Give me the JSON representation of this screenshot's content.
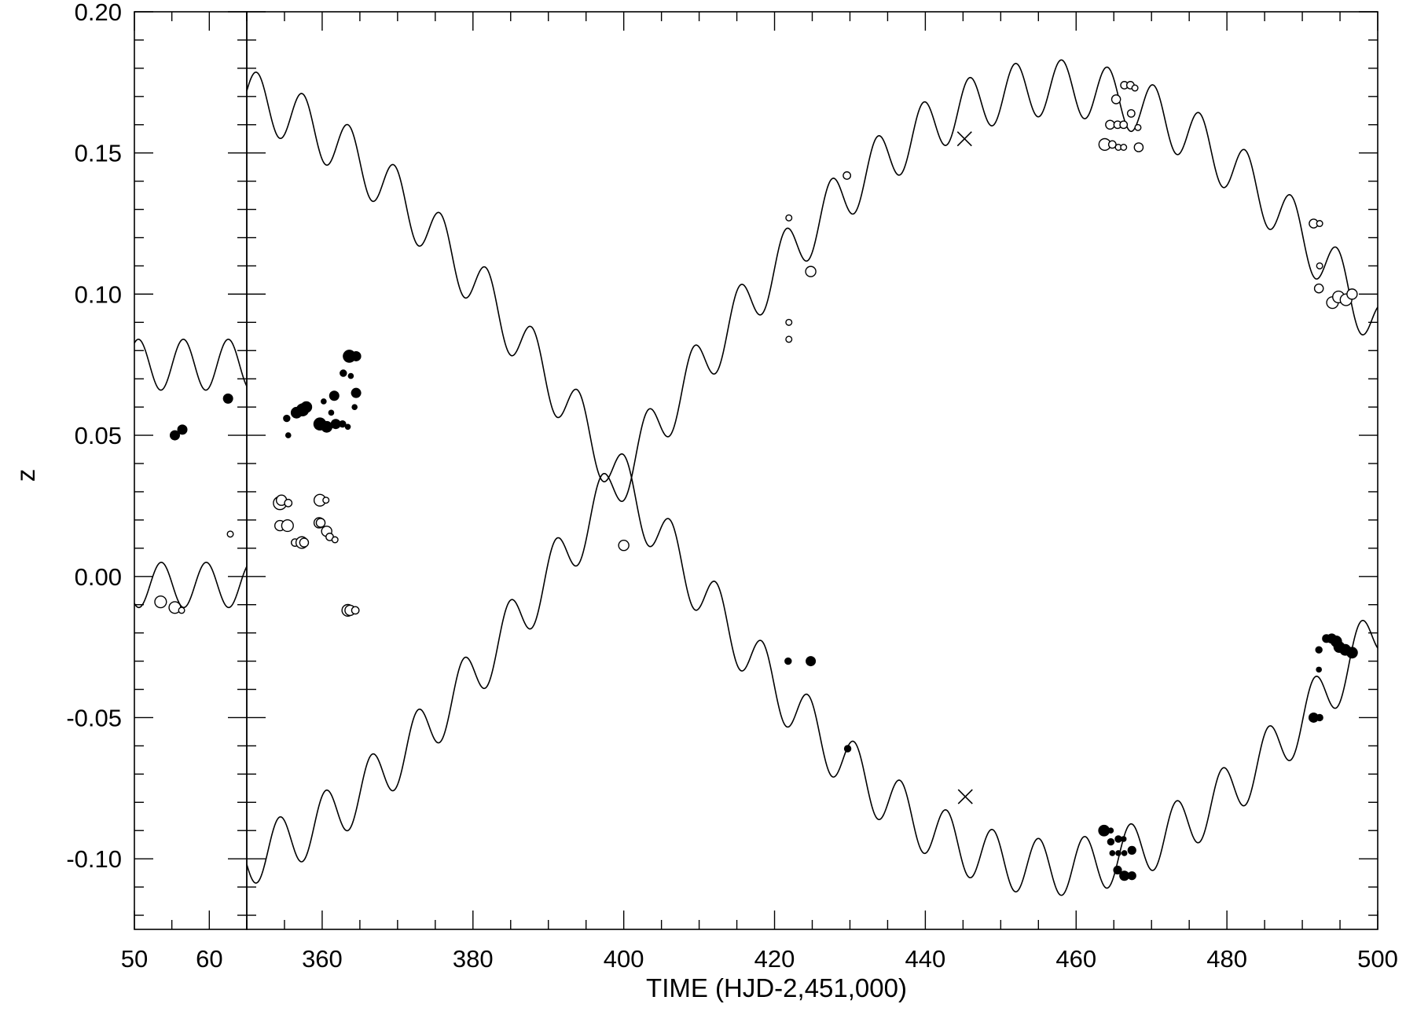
{
  "chart_data": {
    "type": "scatter",
    "xlabel": "TIME (HJD-2,451,000)",
    "ylabel": "z",
    "ylim": [
      -0.125,
      0.2
    ],
    "y_ticks": [
      "0.20",
      "0.15",
      "0.10",
      "0.05",
      "0.00",
      "-0.05",
      "-0.10"
    ],
    "y_tick_values": [
      0.2,
      0.15,
      0.1,
      0.05,
      0.0,
      -0.05,
      -0.1
    ],
    "panels": [
      {
        "xlim": [
          50,
          65
        ],
        "x_ticks": [
          "50",
          "60"
        ],
        "x_tick_values": [
          50,
          60
        ],
        "model": {
          "upper": {
            "mean": 0.075,
            "amplitude": 0.009,
            "period": 6.0,
            "phase": 5.2
          },
          "lower": {
            "mean": -0.003,
            "amplitude": 0.008,
            "period": 6.0,
            "phase": 2.0
          }
        },
        "points": [
          {
            "x": 55.4,
            "y": 0.05,
            "fill": "filled",
            "size": 5
          },
          {
            "x": 56.4,
            "y": 0.052,
            "fill": "filled",
            "size": 5
          },
          {
            "x": 62.5,
            "y": 0.063,
            "fill": "filled",
            "size": 5
          },
          {
            "x": 62.8,
            "y": 0.015,
            "fill": "open",
            "size": 2
          },
          {
            "x": 53.5,
            "y": -0.009,
            "fill": "open",
            "size": 6
          },
          {
            "x": 55.4,
            "y": -0.011,
            "fill": "open",
            "size": 6
          },
          {
            "x": 56.3,
            "y": -0.012,
            "fill": "open",
            "size": 2
          }
        ]
      },
      {
        "xlim": [
          350,
          500
        ],
        "x_ticks": [
          "360",
          "380",
          "400",
          "420",
          "440",
          "460",
          "480",
          "500"
        ],
        "x_tick_values": [
          360,
          380,
          400,
          420,
          440,
          460,
          480,
          500
        ],
        "model": {
          "orbit": {
            "center": 0.035,
            "semi_amplitude": 0.138,
            "period": 230,
            "t_max": 457
          },
          "wobble": {
            "amplitude": 0.01,
            "period": 6.1,
            "phase": 1.0
          }
        },
        "crosses": [
          {
            "x": 445.2,
            "y": 0.155
          },
          {
            "x": 445.3,
            "y": -0.078
          }
        ],
        "points": [
          {
            "x": 355.3,
            "y": 0.056,
            "fill": "filled",
            "size": 3
          },
          {
            "x": 355.5,
            "y": 0.05,
            "fill": "filled",
            "size": 2
          },
          {
            "x": 356.6,
            "y": 0.058,
            "fill": "filled",
            "size": 6
          },
          {
            "x": 357.4,
            "y": 0.059,
            "fill": "filled",
            "size": 7
          },
          {
            "x": 357.9,
            "y": 0.06,
            "fill": "filled",
            "size": 6
          },
          {
            "x": 359.7,
            "y": 0.054,
            "fill": "filled",
            "size": 7
          },
          {
            "x": 360.6,
            "y": 0.053,
            "fill": "filled",
            "size": 6
          },
          {
            "x": 360.2,
            "y": 0.062,
            "fill": "filled",
            "size": 2
          },
          {
            "x": 361.2,
            "y": 0.058,
            "fill": "filled",
            "size": 2
          },
          {
            "x": 361.6,
            "y": 0.064,
            "fill": "filled",
            "size": 5
          },
          {
            "x": 361.8,
            "y": 0.054,
            "fill": "filled",
            "size": 5
          },
          {
            "x": 362.7,
            "y": 0.054,
            "fill": "filled",
            "size": 3
          },
          {
            "x": 363.4,
            "y": 0.053,
            "fill": "filled",
            "size": 2
          },
          {
            "x": 362.8,
            "y": 0.072,
            "fill": "filled",
            "size": 3
          },
          {
            "x": 363.6,
            "y": 0.078,
            "fill": "filled",
            "size": 7
          },
          {
            "x": 364.5,
            "y": 0.078,
            "fill": "filled",
            "size": 5
          },
          {
            "x": 363.8,
            "y": 0.071,
            "fill": "filled",
            "size": 2
          },
          {
            "x": 364.5,
            "y": 0.065,
            "fill": "filled",
            "size": 5
          },
          {
            "x": 364.3,
            "y": 0.06,
            "fill": "filled",
            "size": 2
          },
          {
            "x": 354.4,
            "y": 0.026,
            "fill": "open",
            "size": 7
          },
          {
            "x": 354.6,
            "y": 0.027,
            "fill": "open",
            "size": 5
          },
          {
            "x": 355.5,
            "y": 0.026,
            "fill": "open",
            "size": 3
          },
          {
            "x": 354.4,
            "y": 0.018,
            "fill": "open",
            "size": 5
          },
          {
            "x": 355.4,
            "y": 0.018,
            "fill": "open",
            "size": 6
          },
          {
            "x": 356.4,
            "y": 0.012,
            "fill": "open",
            "size": 3
          },
          {
            "x": 357.3,
            "y": 0.012,
            "fill": "open",
            "size": 6
          },
          {
            "x": 357.6,
            "y": 0.012,
            "fill": "open",
            "size": 4
          },
          {
            "x": 359.7,
            "y": 0.027,
            "fill": "open",
            "size": 6
          },
          {
            "x": 360.5,
            "y": 0.027,
            "fill": "open",
            "size": 2
          },
          {
            "x": 359.6,
            "y": 0.019,
            "fill": "open",
            "size": 5
          },
          {
            "x": 359.8,
            "y": 0.019,
            "fill": "open",
            "size": 4
          },
          {
            "x": 360.6,
            "y": 0.016,
            "fill": "open",
            "size": 5
          },
          {
            "x": 361.0,
            "y": 0.014,
            "fill": "open",
            "size": 3
          },
          {
            "x": 361.7,
            "y": 0.013,
            "fill": "open",
            "size": 2
          },
          {
            "x": 363.4,
            "y": -0.012,
            "fill": "open",
            "size": 6
          },
          {
            "x": 363.7,
            "y": -0.012,
            "fill": "open",
            "size": 5
          },
          {
            "x": 364.4,
            "y": -0.012,
            "fill": "open",
            "size": 3
          },
          {
            "x": 400.0,
            "y": 0.011,
            "fill": "open",
            "size": 5
          },
          {
            "x": 421.9,
            "y": 0.127,
            "fill": "open",
            "size": 2
          },
          {
            "x": 421.9,
            "y": 0.09,
            "fill": "open",
            "size": 2
          },
          {
            "x": 421.9,
            "y": 0.084,
            "fill": "open",
            "size": 2
          },
          {
            "x": 424.8,
            "y": 0.108,
            "fill": "open",
            "size": 5
          },
          {
            "x": 429.6,
            "y": 0.142,
            "fill": "open",
            "size": 3
          },
          {
            "x": 421.8,
            "y": -0.03,
            "fill": "filled",
            "size": 3
          },
          {
            "x": 424.8,
            "y": -0.03,
            "fill": "filled",
            "size": 5
          },
          {
            "x": 429.7,
            "y": -0.061,
            "fill": "filled",
            "size": 3
          },
          {
            "x": 463.8,
            "y": 0.153,
            "fill": "open",
            "size": 6
          },
          {
            "x": 464.8,
            "y": 0.153,
            "fill": "open",
            "size": 3
          },
          {
            "x": 465.6,
            "y": 0.152,
            "fill": "open",
            "size": 2
          },
          {
            "x": 466.3,
            "y": 0.152,
            "fill": "open",
            "size": 2
          },
          {
            "x": 464.5,
            "y": 0.16,
            "fill": "open",
            "size": 4
          },
          {
            "x": 465.5,
            "y": 0.16,
            "fill": "open",
            "size": 3
          },
          {
            "x": 466.3,
            "y": 0.16,
            "fill": "open",
            "size": 3
          },
          {
            "x": 465.3,
            "y": 0.169,
            "fill": "open",
            "size": 4
          },
          {
            "x": 466.4,
            "y": 0.174,
            "fill": "open",
            "size": 3
          },
          {
            "x": 467.2,
            "y": 0.174,
            "fill": "open",
            "size": 3
          },
          {
            "x": 467.8,
            "y": 0.173,
            "fill": "open",
            "size": 2
          },
          {
            "x": 467.3,
            "y": 0.164,
            "fill": "open",
            "size": 3
          },
          {
            "x": 468.2,
            "y": 0.159,
            "fill": "open",
            "size": 2
          },
          {
            "x": 468.3,
            "y": 0.152,
            "fill": "open",
            "size": 4
          },
          {
            "x": 463.7,
            "y": -0.09,
            "fill": "filled",
            "size": 6
          },
          {
            "x": 464.6,
            "y": -0.09,
            "fill": "filled",
            "size": 2
          },
          {
            "x": 464.6,
            "y": -0.094,
            "fill": "filled",
            "size": 3
          },
          {
            "x": 465.6,
            "y": -0.093,
            "fill": "filled",
            "size": 3
          },
          {
            "x": 466.3,
            "y": -0.093,
            "fill": "filled",
            "size": 2
          },
          {
            "x": 464.8,
            "y": -0.098,
            "fill": "filled",
            "size": 2
          },
          {
            "x": 465.6,
            "y": -0.098,
            "fill": "filled",
            "size": 2
          },
          {
            "x": 466.4,
            "y": -0.098,
            "fill": "filled",
            "size": 2
          },
          {
            "x": 467.4,
            "y": -0.097,
            "fill": "filled",
            "size": 4
          },
          {
            "x": 465.5,
            "y": -0.104,
            "fill": "filled",
            "size": 4
          },
          {
            "x": 466.4,
            "y": -0.106,
            "fill": "filled",
            "size": 5
          },
          {
            "x": 467.4,
            "y": -0.106,
            "fill": "filled",
            "size": 4
          },
          {
            "x": 491.5,
            "y": 0.125,
            "fill": "open",
            "size": 4
          },
          {
            "x": 492.3,
            "y": 0.125,
            "fill": "open",
            "size": 2
          },
          {
            "x": 492.3,
            "y": 0.11,
            "fill": "open",
            "size": 2
          },
          {
            "x": 492.2,
            "y": 0.102,
            "fill": "open",
            "size": 4
          },
          {
            "x": 494.0,
            "y": 0.097,
            "fill": "open",
            "size": 6
          },
          {
            "x": 494.8,
            "y": 0.099,
            "fill": "open",
            "size": 6
          },
          {
            "x": 495.8,
            "y": 0.098,
            "fill": "open",
            "size": 6
          },
          {
            "x": 496.6,
            "y": 0.1,
            "fill": "open",
            "size": 5
          },
          {
            "x": 492.2,
            "y": -0.026,
            "fill": "filled",
            "size": 3
          },
          {
            "x": 492.2,
            "y": -0.033,
            "fill": "filled",
            "size": 2
          },
          {
            "x": 493.2,
            "y": -0.022,
            "fill": "filled",
            "size": 4
          },
          {
            "x": 493.9,
            "y": -0.022,
            "fill": "filled",
            "size": 5
          },
          {
            "x": 494.5,
            "y": -0.023,
            "fill": "filled",
            "size": 6
          },
          {
            "x": 494.9,
            "y": -0.025,
            "fill": "filled",
            "size": 6
          },
          {
            "x": 495.7,
            "y": -0.026,
            "fill": "filled",
            "size": 6
          },
          {
            "x": 496.6,
            "y": -0.027,
            "fill": "filled",
            "size": 6
          },
          {
            "x": 491.5,
            "y": -0.05,
            "fill": "filled",
            "size": 5
          },
          {
            "x": 492.3,
            "y": -0.05,
            "fill": "filled",
            "size": 3
          }
        ]
      }
    ]
  }
}
